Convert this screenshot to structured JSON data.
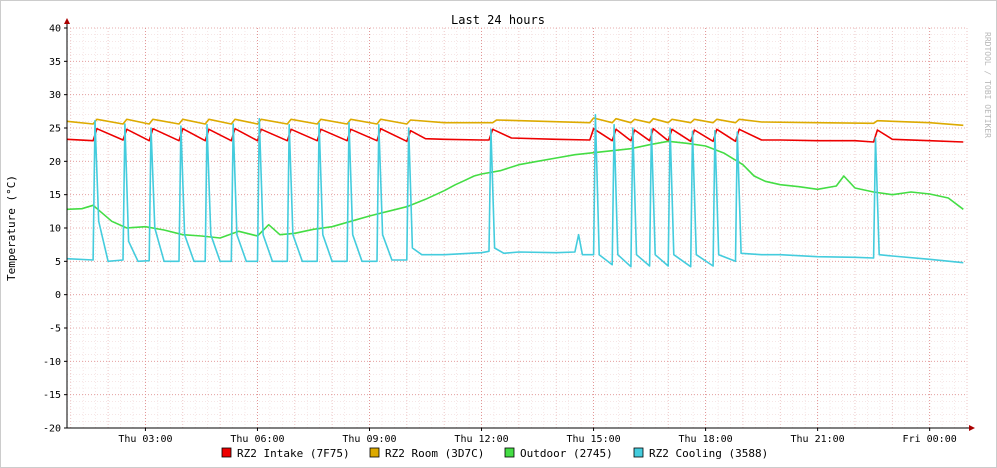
{
  "chart_data": {
    "type": "line",
    "title": "Last 24 hours",
    "ylabel": "Temperature (°C)",
    "xlabel": "",
    "watermark": "RRDTOOL / TOBI OETIKER",
    "ylim": [
      -20,
      40
    ],
    "xlim_hours": [
      0.9,
      25
    ],
    "y_ticks": [
      -20,
      -15,
      -10,
      -5,
      0,
      5,
      10,
      15,
      20,
      25,
      30,
      35,
      40
    ],
    "x_ticks": [
      {
        "h": 3,
        "label": "Thu 03:00"
      },
      {
        "h": 6,
        "label": "Thu 06:00"
      },
      {
        "h": 9,
        "label": "Thu 09:00"
      },
      {
        "h": 12,
        "label": "Thu 12:00"
      },
      {
        "h": 15,
        "label": "Thu 15:00"
      },
      {
        "h": 18,
        "label": "Thu 18:00"
      },
      {
        "h": 21,
        "label": "Thu 21:00"
      },
      {
        "h": 24,
        "label": "Fri 00:00"
      }
    ],
    "grid": true,
    "legend_position": "bottom",
    "series": [
      {
        "name": "RZ2 Intake (7F75)",
        "color": "#ee0000",
        "points": [
          [
            0.9,
            23.3
          ],
          [
            1.6,
            23.1
          ],
          [
            1.7,
            24.9
          ],
          [
            2.4,
            23.2
          ],
          [
            2.5,
            24.8
          ],
          [
            3.1,
            23.1
          ],
          [
            3.2,
            24.9
          ],
          [
            3.9,
            23.1
          ],
          [
            4.0,
            24.9
          ],
          [
            4.6,
            23.1
          ],
          [
            4.7,
            24.8
          ],
          [
            5.3,
            23.1
          ],
          [
            5.4,
            24.9
          ],
          [
            6.0,
            23.1
          ],
          [
            6.1,
            24.8
          ],
          [
            6.8,
            23.1
          ],
          [
            6.9,
            24.8
          ],
          [
            7.6,
            23.1
          ],
          [
            7.7,
            24.8
          ],
          [
            8.4,
            23.1
          ],
          [
            8.5,
            24.8
          ],
          [
            9.2,
            23.1
          ],
          [
            9.3,
            24.9
          ],
          [
            10.0,
            23.0
          ],
          [
            10.1,
            24.6
          ],
          [
            10.5,
            23.4
          ],
          [
            11.0,
            23.3
          ],
          [
            12.0,
            23.2
          ],
          [
            12.2,
            23.2
          ],
          [
            12.3,
            24.8
          ],
          [
            12.8,
            23.5
          ],
          [
            14.0,
            23.3
          ],
          [
            14.9,
            23.2
          ],
          [
            15.0,
            24.9
          ],
          [
            15.5,
            23.1
          ],
          [
            15.6,
            24.8
          ],
          [
            16.0,
            23.1
          ],
          [
            16.1,
            24.7
          ],
          [
            16.5,
            23.1
          ],
          [
            16.6,
            24.9
          ],
          [
            17.0,
            23.1
          ],
          [
            17.1,
            24.8
          ],
          [
            17.6,
            23.0
          ],
          [
            17.7,
            24.7
          ],
          [
            18.2,
            23.0
          ],
          [
            18.3,
            24.8
          ],
          [
            18.8,
            23.0
          ],
          [
            18.9,
            24.8
          ],
          [
            19.5,
            23.2
          ],
          [
            20.0,
            23.2
          ],
          [
            21.0,
            23.1
          ],
          [
            22.0,
            23.1
          ],
          [
            22.5,
            22.9
          ],
          [
            22.6,
            24.7
          ],
          [
            23.0,
            23.3
          ],
          [
            24.0,
            23.1
          ],
          [
            24.9,
            22.9
          ]
        ]
      },
      {
        "name": "RZ2 Room (3D7C)",
        "color": "#ddaa00",
        "points": [
          [
            0.9,
            26.0
          ],
          [
            1.6,
            25.6
          ],
          [
            1.7,
            26.3
          ],
          [
            2.4,
            25.6
          ],
          [
            2.5,
            26.3
          ],
          [
            3.1,
            25.6
          ],
          [
            3.2,
            26.3
          ],
          [
            3.9,
            25.6
          ],
          [
            4.0,
            26.3
          ],
          [
            4.6,
            25.6
          ],
          [
            4.7,
            26.3
          ],
          [
            5.3,
            25.6
          ],
          [
            5.4,
            26.3
          ],
          [
            6.0,
            25.6
          ],
          [
            6.1,
            26.3
          ],
          [
            6.8,
            25.6
          ],
          [
            6.9,
            26.3
          ],
          [
            7.6,
            25.6
          ],
          [
            7.7,
            26.3
          ],
          [
            8.4,
            25.6
          ],
          [
            8.5,
            26.3
          ],
          [
            9.2,
            25.6
          ],
          [
            9.3,
            26.3
          ],
          [
            10.0,
            25.6
          ],
          [
            10.1,
            26.2
          ],
          [
            11.0,
            25.8
          ],
          [
            12.3,
            25.8
          ],
          [
            12.4,
            26.2
          ],
          [
            14.9,
            25.8
          ],
          [
            15.0,
            26.5
          ],
          [
            15.5,
            25.8
          ],
          [
            15.6,
            26.4
          ],
          [
            16.0,
            25.8
          ],
          [
            16.1,
            26.3
          ],
          [
            16.5,
            25.8
          ],
          [
            16.6,
            26.4
          ],
          [
            17.0,
            25.8
          ],
          [
            17.1,
            26.3
          ],
          [
            17.6,
            25.8
          ],
          [
            17.7,
            26.3
          ],
          [
            18.2,
            25.8
          ],
          [
            18.3,
            26.3
          ],
          [
            18.8,
            25.8
          ],
          [
            18.9,
            26.3
          ],
          [
            19.5,
            25.9
          ],
          [
            21.0,
            25.8
          ],
          [
            22.5,
            25.7
          ],
          [
            22.6,
            26.1
          ],
          [
            24.0,
            25.8
          ],
          [
            24.9,
            25.4
          ]
        ]
      },
      {
        "name": "Outdoor (2745)",
        "color": "#44dd44",
        "points": [
          [
            0.9,
            12.8
          ],
          [
            1.3,
            12.9
          ],
          [
            1.6,
            13.4
          ],
          [
            2.1,
            11.0
          ],
          [
            2.5,
            10.0
          ],
          [
            3.0,
            10.2
          ],
          [
            3.5,
            9.7
          ],
          [
            4.0,
            9.0
          ],
          [
            4.5,
            8.8
          ],
          [
            5.0,
            8.5
          ],
          [
            5.5,
            9.5
          ],
          [
            6.0,
            8.8
          ],
          [
            6.3,
            10.5
          ],
          [
            6.6,
            9.0
          ],
          [
            7.0,
            9.2
          ],
          [
            7.5,
            9.8
          ],
          [
            8.0,
            10.2
          ],
          [
            8.5,
            11.0
          ],
          [
            9.0,
            11.8
          ],
          [
            9.5,
            12.5
          ],
          [
            10.0,
            13.2
          ],
          [
            10.5,
            14.3
          ],
          [
            11.0,
            15.6
          ],
          [
            11.3,
            16.5
          ],
          [
            11.5,
            17.0
          ],
          [
            11.8,
            17.8
          ],
          [
            12.0,
            18.1
          ],
          [
            12.5,
            18.6
          ],
          [
            13.0,
            19.5
          ],
          [
            13.5,
            20.0
          ],
          [
            14.0,
            20.5
          ],
          [
            14.5,
            21.0
          ],
          [
            15.0,
            21.3
          ],
          [
            15.5,
            21.6
          ],
          [
            16.0,
            21.9
          ],
          [
            16.5,
            22.5
          ],
          [
            17.0,
            23.0
          ],
          [
            17.5,
            22.7
          ],
          [
            18.0,
            22.3
          ],
          [
            18.5,
            21.2
          ],
          [
            19.0,
            19.5
          ],
          [
            19.3,
            17.8
          ],
          [
            19.6,
            17.0
          ],
          [
            20.0,
            16.5
          ],
          [
            20.5,
            16.2
          ],
          [
            21.0,
            15.8
          ],
          [
            21.5,
            16.3
          ],
          [
            21.7,
            17.8
          ],
          [
            22.0,
            16.0
          ],
          [
            22.5,
            15.4
          ],
          [
            23.0,
            15.0
          ],
          [
            23.5,
            15.4
          ],
          [
            24.0,
            15.1
          ],
          [
            24.5,
            14.5
          ],
          [
            24.9,
            12.8
          ]
        ]
      },
      {
        "name": "RZ2 Cooling (3588)",
        "color": "#44ccdd",
        "points": [
          [
            0.9,
            5.4
          ],
          [
            1.6,
            5.2
          ],
          [
            1.65,
            26.1
          ],
          [
            1.75,
            11.0
          ],
          [
            2.0,
            5.0
          ],
          [
            2.4,
            5.2
          ],
          [
            2.45,
            25.6
          ],
          [
            2.55,
            8.0
          ],
          [
            2.8,
            5.0
          ],
          [
            3.1,
            5.1
          ],
          [
            3.15,
            25.0
          ],
          [
            3.25,
            10.0
          ],
          [
            3.5,
            5.0
          ],
          [
            3.9,
            5.0
          ],
          [
            3.95,
            25.3
          ],
          [
            4.05,
            9.0
          ],
          [
            4.3,
            5.0
          ],
          [
            4.6,
            5.0
          ],
          [
            4.65,
            25.5
          ],
          [
            4.75,
            9.0
          ],
          [
            5.0,
            5.0
          ],
          [
            5.3,
            5.0
          ],
          [
            5.35,
            25.6
          ],
          [
            5.45,
            9.0
          ],
          [
            5.7,
            5.0
          ],
          [
            6.0,
            5.0
          ],
          [
            6.05,
            26.4
          ],
          [
            6.15,
            9.0
          ],
          [
            6.4,
            5.0
          ],
          [
            6.8,
            5.0
          ],
          [
            6.85,
            25.5
          ],
          [
            6.95,
            9.0
          ],
          [
            7.2,
            5.0
          ],
          [
            7.6,
            5.0
          ],
          [
            7.65,
            25.7
          ],
          [
            7.75,
            9.0
          ],
          [
            8.0,
            5.0
          ],
          [
            8.4,
            5.0
          ],
          [
            8.45,
            25.8
          ],
          [
            8.55,
            9.0
          ],
          [
            8.8,
            5.0
          ],
          [
            9.2,
            5.0
          ],
          [
            9.25,
            25.5
          ],
          [
            9.35,
            9.0
          ],
          [
            9.6,
            5.2
          ],
          [
            10.0,
            5.2
          ],
          [
            10.05,
            25.0
          ],
          [
            10.15,
            7.0
          ],
          [
            10.4,
            6.0
          ],
          [
            11.0,
            6.0
          ],
          [
            12.0,
            6.3
          ],
          [
            12.2,
            6.5
          ],
          [
            12.25,
            24.8
          ],
          [
            12.35,
            7.0
          ],
          [
            12.6,
            6.2
          ],
          [
            13.0,
            6.4
          ],
          [
            14.0,
            6.3
          ],
          [
            14.5,
            6.4
          ],
          [
            14.6,
            9.0
          ],
          [
            14.7,
            6.0
          ],
          [
            15.0,
            6.0
          ],
          [
            15.05,
            27.0
          ],
          [
            15.15,
            6.0
          ],
          [
            15.5,
            4.5
          ],
          [
            15.55,
            25.5
          ],
          [
            15.65,
            6.0
          ],
          [
            16.0,
            4.2
          ],
          [
            16.05,
            25.0
          ],
          [
            16.15,
            6.0
          ],
          [
            16.5,
            4.3
          ],
          [
            16.55,
            24.8
          ],
          [
            16.65,
            6.0
          ],
          [
            17.0,
            4.3
          ],
          [
            17.05,
            25.0
          ],
          [
            17.15,
            6.0
          ],
          [
            17.6,
            4.2
          ],
          [
            17.65,
            24.5
          ],
          [
            17.75,
            6.0
          ],
          [
            18.2,
            4.3
          ],
          [
            18.25,
            24.6
          ],
          [
            18.35,
            6.0
          ],
          [
            18.8,
            5.0
          ],
          [
            18.85,
            24.4
          ],
          [
            18.95,
            6.2
          ],
          [
            19.5,
            6.0
          ],
          [
            20.0,
            6.0
          ],
          [
            21.0,
            5.7
          ],
          [
            22.0,
            5.6
          ],
          [
            22.5,
            5.5
          ],
          [
            22.55,
            23.5
          ],
          [
            22.65,
            6.0
          ],
          [
            23.0,
            5.8
          ],
          [
            24.0,
            5.3
          ],
          [
            24.9,
            4.8
          ]
        ]
      }
    ]
  }
}
